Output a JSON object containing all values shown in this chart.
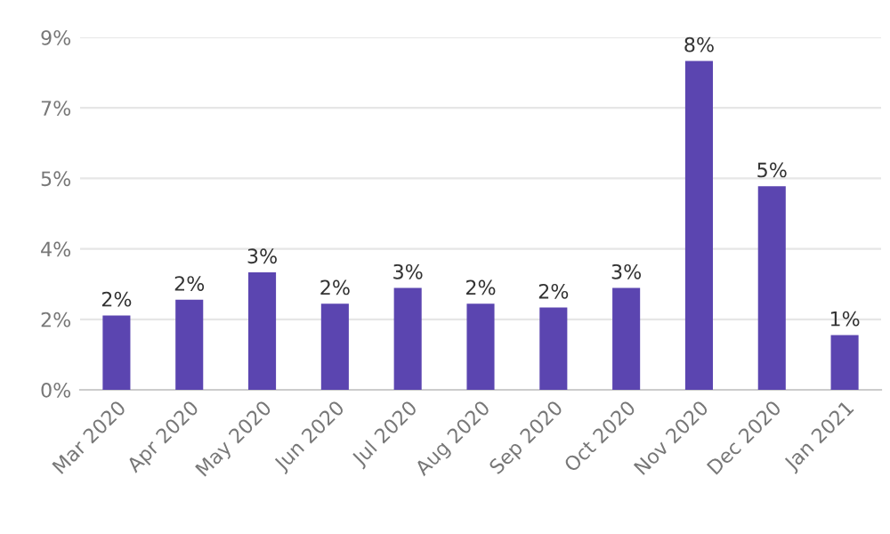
{
  "chart_data": {
    "type": "bar",
    "categories": [
      "Mar 2020",
      "Apr 2020",
      "May 2020",
      "Jun 2020",
      "Jul 2020",
      "Aug 2020",
      "Sep 2020",
      "Oct 2020",
      "Nov 2020",
      "Dec 2020",
      "Jan 2021"
    ],
    "values": [
      1.9,
      2.3,
      3.0,
      2.2,
      2.6,
      2.2,
      2.1,
      2.6,
      8.4,
      5.2,
      1.4
    ],
    "value_labels": [
      "2%",
      "2%",
      "3%",
      "2%",
      "3%",
      "2%",
      "2%",
      "3%",
      "8%",
      "5%",
      "1%"
    ],
    "color": "#5b45b0",
    "ylim": [
      0,
      9
    ],
    "yticks": [
      {
        "value": 0,
        "label": "0%"
      },
      {
        "value": 1.8,
        "label": "2%"
      },
      {
        "value": 3.6,
        "label": "4%"
      },
      {
        "value": 5.4,
        "label": "5%"
      },
      {
        "value": 7.2,
        "label": "7%"
      },
      {
        "value": 9,
        "label": "9%"
      }
    ],
    "grid": "y"
  }
}
